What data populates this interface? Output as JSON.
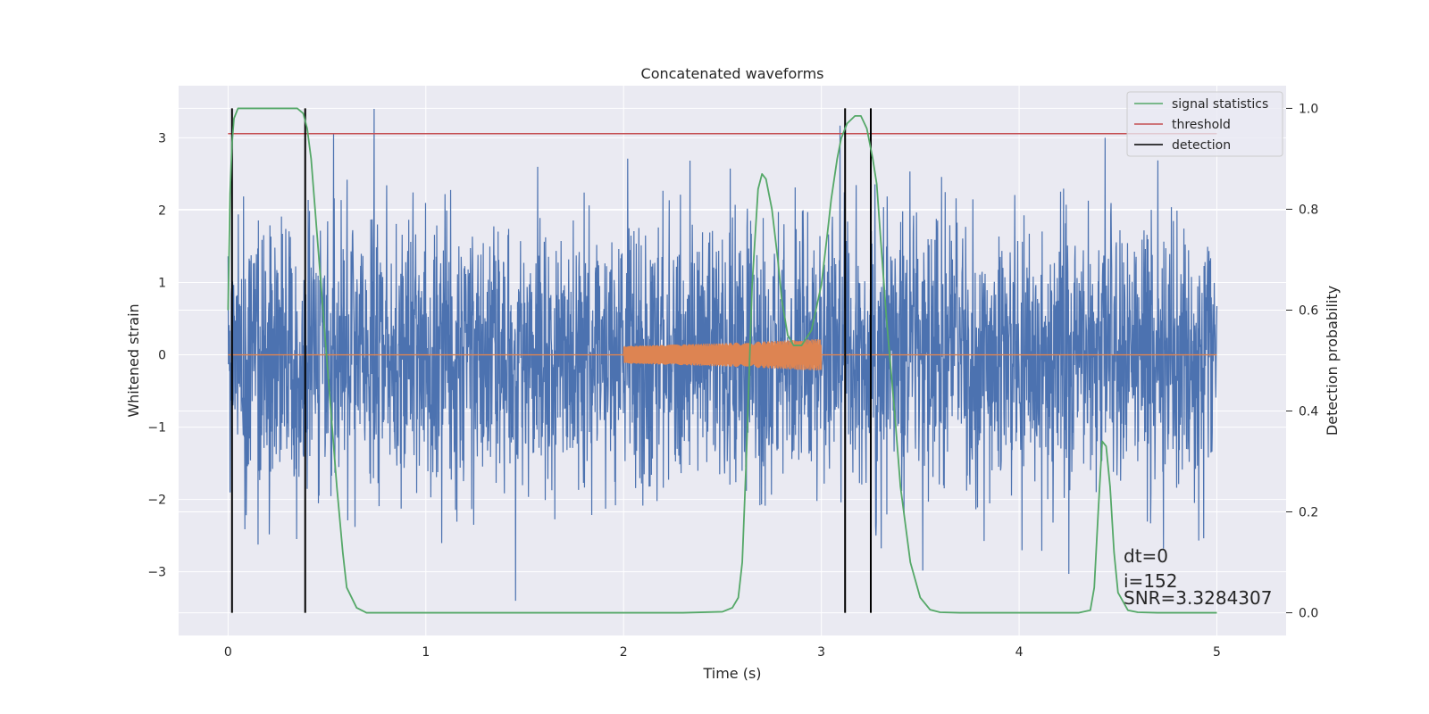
{
  "chart_data": {
    "type": "line",
    "title": "Concatenated waveforms",
    "xlabel": "Time (s)",
    "ylabel": "Whitened strain",
    "y2label": "Detection probability",
    "xlim": [
      -0.25,
      5.35
    ],
    "ylim": [
      -3.88,
      3.72
    ],
    "y2lim": [
      -0.045,
      1.045
    ],
    "x_ticks": [
      0,
      1,
      2,
      3,
      4,
      5
    ],
    "y_ticks": [
      -3,
      -2,
      -1,
      0,
      1,
      2,
      3
    ],
    "y2_ticks": [
      0.0,
      0.2,
      0.4,
      0.6,
      0.8,
      1.0
    ],
    "y2_tick_labels": [
      "0.0",
      "0.2",
      "0.4",
      "0.6",
      "0.8",
      "1.0"
    ],
    "grid": true,
    "legend_position": "top-right",
    "colors": {
      "strain": "#4c72b0",
      "injection": "#dd8452",
      "signal_statistics": "#55a868",
      "threshold": "#c44e52",
      "detection": "#000000",
      "background": "#eaeaf2",
      "grid": "#ffffff"
    },
    "series": [
      {
        "name": "",
        "key": "strain",
        "axis": "left",
        "t_start": 0.0,
        "t_end": 5.0,
        "approx_std": 0.95,
        "approx_peak": 3.4
      },
      {
        "name": "",
        "key": "injection",
        "axis": "left",
        "x": [
          2.0,
          2.25,
          2.5,
          2.75,
          3.0
        ],
        "amplitude": [
          0.12,
          0.14,
          0.16,
          0.19,
          0.22
        ]
      },
      {
        "name": "signal statistics",
        "key": "signal_statistics",
        "axis": "right",
        "x": [
          0.0,
          0.01,
          0.02,
          0.03,
          0.05,
          0.08,
          0.1,
          0.2,
          0.35,
          0.38,
          0.4,
          0.42,
          0.45,
          0.5,
          0.55,
          0.58,
          0.6,
          0.65,
          0.7,
          1.0,
          1.5,
          2.0,
          2.3,
          2.5,
          2.55,
          2.58,
          2.6,
          2.62,
          2.65,
          2.68,
          2.7,
          2.72,
          2.75,
          2.78,
          2.8,
          2.83,
          2.86,
          2.9,
          2.95,
          3.0,
          3.03,
          3.05,
          3.08,
          3.1,
          3.13,
          3.17,
          3.2,
          3.23,
          3.26,
          3.28,
          3.3,
          3.33,
          3.37,
          3.4,
          3.45,
          3.5,
          3.55,
          3.6,
          3.7,
          4.0,
          4.3,
          4.36,
          4.38,
          4.4,
          4.42,
          4.44,
          4.46,
          4.48,
          4.5,
          4.55,
          4.6,
          4.7,
          5.0
        ],
        "y": [
          0.6,
          0.83,
          0.93,
          0.98,
          1.0,
          1.0,
          1.0,
          1.0,
          1.0,
          0.99,
          0.96,
          0.9,
          0.75,
          0.5,
          0.25,
          0.12,
          0.05,
          0.01,
          0.0,
          0.0,
          0.0,
          0.0,
          0.0,
          0.002,
          0.01,
          0.03,
          0.1,
          0.3,
          0.65,
          0.84,
          0.87,
          0.86,
          0.8,
          0.7,
          0.62,
          0.55,
          0.53,
          0.53,
          0.56,
          0.65,
          0.75,
          0.82,
          0.9,
          0.94,
          0.97,
          0.985,
          0.985,
          0.96,
          0.9,
          0.85,
          0.74,
          0.58,
          0.4,
          0.25,
          0.1,
          0.03,
          0.006,
          0.001,
          0.0,
          0.0,
          0.0,
          0.005,
          0.05,
          0.2,
          0.34,
          0.33,
          0.25,
          0.12,
          0.04,
          0.005,
          0.001,
          0.0,
          0.0
        ]
      },
      {
        "name": "threshold",
        "key": "threshold",
        "axis": "right",
        "x": [
          0.0,
          5.0
        ],
        "y": [
          0.95,
          0.95
        ]
      },
      {
        "name": "detection",
        "key": "detection",
        "axis": "right",
        "x_lines": [
          0.02,
          0.39,
          3.12,
          3.25
        ],
        "y_range": [
          0.0,
          1.0
        ]
      }
    ],
    "annotations": [
      "dt=0",
      "i=152",
      "SNR=3.3284307"
    ]
  }
}
